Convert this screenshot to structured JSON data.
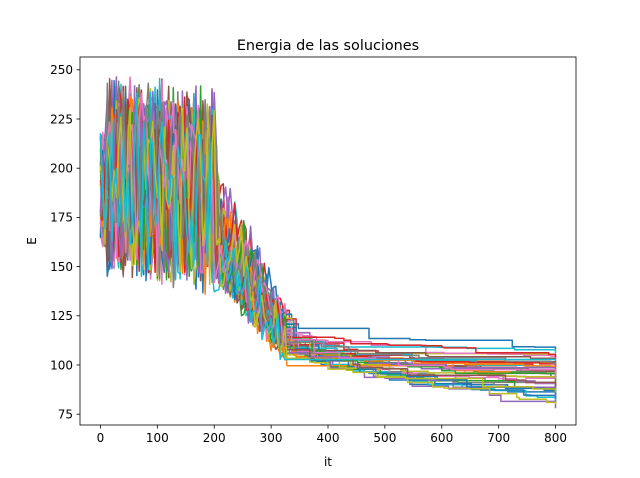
{
  "chart_data": {
    "type": "line",
    "title": "Energia de las soluciones",
    "xlabel": "it",
    "ylabel": "E",
    "xlim": [
      -36,
      836
    ],
    "ylim": [
      69.5,
      256.5
    ],
    "x_ticks": [
      0,
      100,
      200,
      300,
      400,
      500,
      600,
      700,
      800
    ],
    "y_ticks": [
      75,
      100,
      125,
      150,
      175,
      200,
      225,
      250
    ],
    "grid": false,
    "legend": "none",
    "x_range": [
      0,
      800
    ],
    "series_count": 40,
    "palette": [
      "#1f77b4",
      "#ff7f0e",
      "#2ca02c",
      "#d62728",
      "#9467bd",
      "#8c564b",
      "#e377c2",
      "#7f7f7f",
      "#bcbd22",
      "#17becf"
    ],
    "series": [
      {
        "final": 81
      },
      {
        "final": 100
      },
      {
        "final": 96
      },
      {
        "final": 95
      },
      {
        "final": 78
      },
      {
        "final": 96
      },
      {
        "final": 91
      },
      {
        "final": 86
      },
      {
        "final": 105
      },
      {
        "final": 82
      },
      {
        "final": 108
      },
      {
        "final": 101
      },
      {
        "final": 93
      },
      {
        "final": 98
      },
      {
        "final": 89
      },
      {
        "final": 100
      },
      {
        "final": 102
      },
      {
        "final": 88
      },
      {
        "final": 92
      },
      {
        "final": 97
      },
      {
        "final": 83
      },
      {
        "final": 94
      },
      {
        "final": 87
      },
      {
        "final": 99
      },
      {
        "final": 84
      },
      {
        "final": 103
      },
      {
        "final": 90
      },
      {
        "final": 95
      },
      {
        "final": 80
      },
      {
        "final": 106
      },
      {
        "final": 85
      },
      {
        "final": 98
      },
      {
        "final": 91
      },
      {
        "final": 104
      },
      {
        "final": 97
      },
      {
        "final": 89
      },
      {
        "final": 93
      },
      {
        "final": 100
      },
      {
        "final": 86
      },
      {
        "final": 102
      }
    ]
  }
}
